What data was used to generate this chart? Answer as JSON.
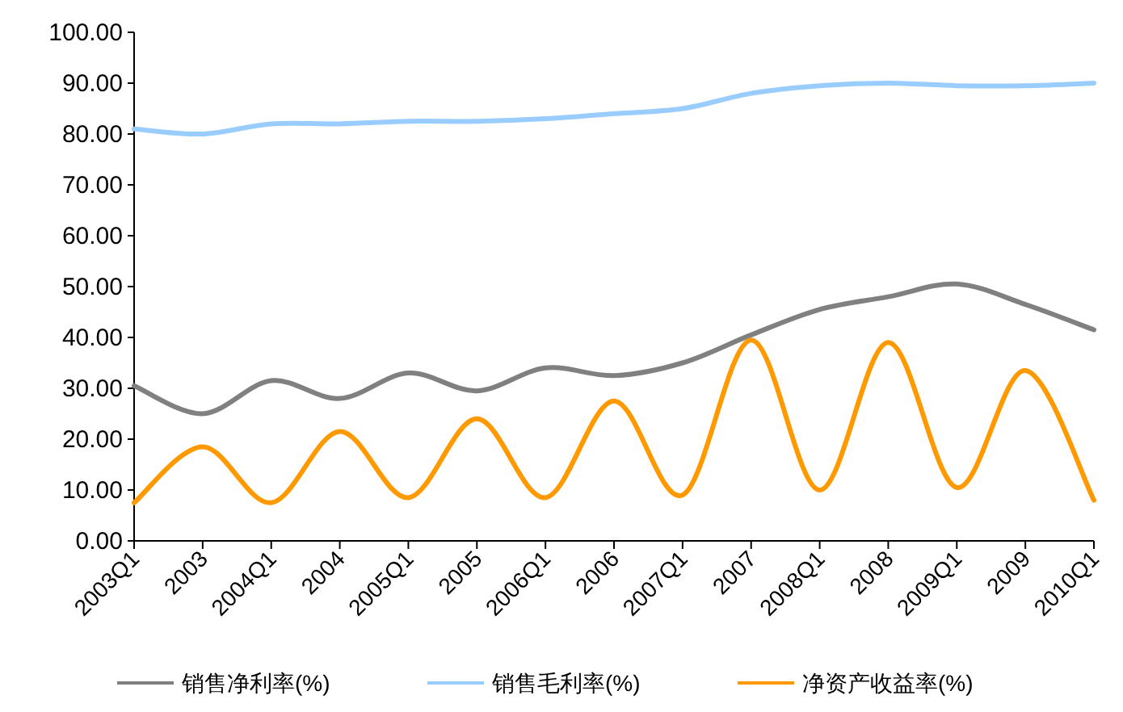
{
  "chart_data": {
    "type": "line",
    "categories": [
      "2003Q1",
      "2003",
      "2004Q1",
      "2004",
      "2005Q1",
      "2005",
      "2006Q1",
      "2006",
      "2007Q1",
      "2007",
      "2008Q1",
      "2008",
      "2009Q1",
      "2009",
      "2010Q1"
    ],
    "series": [
      {
        "name": "销售净利率(%)",
        "color": "#808080",
        "values": [
          30.5,
          25,
          31.5,
          28,
          33,
          29.5,
          34,
          32.5,
          35,
          40.5,
          45.5,
          48,
          50.5,
          46.5,
          41.5
        ]
      },
      {
        "name": "销售毛利率(%)",
        "color": "#99ccff",
        "values": [
          81,
          80,
          82,
          82,
          82.5,
          82.5,
          83,
          84,
          85,
          88,
          89.5,
          90,
          89.5,
          89.5,
          90
        ]
      },
      {
        "name": "净资产收益率(%)",
        "color": "#ff9900",
        "values": [
          7.5,
          18.5,
          7.5,
          21.5,
          8.5,
          24,
          8.5,
          27.5,
          9,
          39.5,
          10,
          39,
          10.5,
          33.5,
          8
        ]
      }
    ],
    "ylim": [
      0,
      100
    ],
    "yticks": [
      {
        "value": 0,
        "label": "0.00"
      },
      {
        "value": 10,
        "label": "10.00"
      },
      {
        "value": 20,
        "label": "20.00"
      },
      {
        "value": 30,
        "label": "30.00"
      },
      {
        "value": 40,
        "label": "40.00"
      },
      {
        "value": 50,
        "label": "50.00"
      },
      {
        "value": 60,
        "label": "60.00"
      },
      {
        "value": 70,
        "label": "70.00"
      },
      {
        "value": 80,
        "label": "80.00"
      },
      {
        "value": 90,
        "label": "90.00"
      },
      {
        "value": 100,
        "label": "100.00"
      }
    ],
    "legend": "bottom",
    "marker": "none",
    "line_style": "solid"
  }
}
